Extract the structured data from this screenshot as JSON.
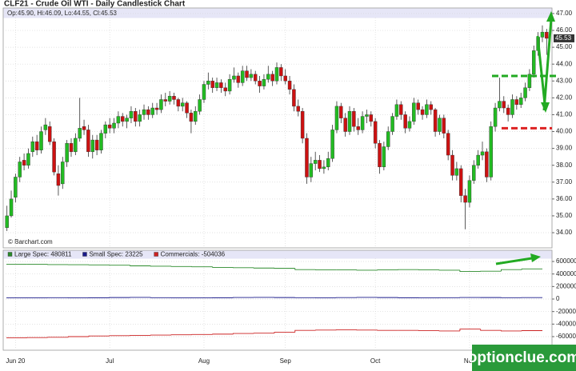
{
  "watermark": "optionclue.com",
  "chart_data": [
    {
      "type": "candlestick",
      "title": "CLF21 - Crude Oil WTI - Daily Candlestick Chart",
      "ohlc_header": "Op:45.90, Hi:46.09, Lo:44.55, Cl:45.53",
      "source": "© Barchart.com",
      "up_color": "#22bb22",
      "down_color": "#cc1111",
      "wick_color": "#333333",
      "grid": true,
      "ylim": [
        33.1,
        47.33
      ],
      "yticks": [
        {
          "value": 34,
          "label": "34.00"
        },
        {
          "value": 35,
          "label": "35.00"
        },
        {
          "value": 36,
          "label": "36.00"
        },
        {
          "value": 37,
          "label": "37.00"
        },
        {
          "value": 38,
          "label": "38.00"
        },
        {
          "value": 39,
          "label": "39.00"
        },
        {
          "value": 40,
          "label": "40.00"
        },
        {
          "value": 41,
          "label": "41.00"
        },
        {
          "value": 42,
          "label": "42.00"
        },
        {
          "value": 43,
          "label": "43.00"
        },
        {
          "value": 44,
          "label": "44.00"
        },
        {
          "value": 45,
          "label": "45.00"
        },
        {
          "value": 46,
          "label": "46.00"
        },
        {
          "value": 47,
          "label": "47.00"
        }
      ],
      "levels": [
        {
          "value": 43.3,
          "color": "#22aa22"
        },
        {
          "value": 40.2,
          "color": "#dd2222"
        }
      ],
      "categories": [
        null,
        null,
        "Jun 20",
        null,
        null,
        null,
        null,
        null,
        null,
        null,
        null,
        null,
        null,
        null,
        null,
        null,
        null,
        null,
        null,
        null,
        null,
        null,
        null,
        null,
        "Jul",
        null,
        null,
        null,
        null,
        null,
        null,
        null,
        null,
        null,
        null,
        null,
        null,
        null,
        null,
        null,
        null,
        null,
        null,
        null,
        null,
        null,
        "Aug",
        null,
        null,
        null,
        null,
        null,
        null,
        null,
        null,
        null,
        null,
        null,
        null,
        null,
        null,
        null,
        null,
        null,
        null,
        "Sep",
        null,
        null,
        null,
        null,
        null,
        null,
        null,
        null,
        null,
        null,
        null,
        null,
        null,
        null,
        null,
        null,
        null,
        null,
        null,
        null,
        "Oct",
        null,
        null,
        null,
        null,
        null,
        null,
        null,
        null,
        null,
        null,
        null,
        null,
        null,
        null,
        null,
        null,
        null,
        null,
        null,
        null,
        null,
        "Nov",
        null,
        null,
        null,
        null,
        null,
        null,
        null,
        null,
        null,
        null,
        null,
        null,
        null,
        null,
        null,
        null,
        null,
        null
      ],
      "ohlc": [
        [
          34.3,
          35.6,
          34.1,
          35.0
        ],
        [
          35.0,
          36.5,
          34.9,
          36.0
        ],
        [
          36.1,
          37.5,
          35.8,
          37.3
        ],
        [
          37.3,
          38.5,
          37.0,
          38.2
        ],
        [
          38.3,
          38.7,
          37.7,
          38.0
        ],
        [
          38.0,
          39.0,
          37.8,
          38.7
        ],
        [
          38.8,
          39.7,
          38.5,
          39.4
        ],
        [
          39.4,
          39.8,
          38.6,
          38.9
        ],
        [
          38.9,
          40.3,
          38.7,
          40.0
        ],
        [
          40.1,
          40.8,
          39.8,
          40.4
        ],
        [
          40.3,
          40.6,
          39.2,
          39.4
        ],
        [
          39.4,
          39.6,
          37.4,
          37.6
        ],
        [
          37.5,
          38.0,
          36.2,
          36.8
        ],
        [
          36.9,
          38.5,
          36.6,
          38.2
        ],
        [
          38.2,
          39.5,
          37.9,
          39.3
        ],
        [
          39.3,
          39.6,
          38.5,
          38.8
        ],
        [
          38.8,
          39.9,
          38.6,
          39.6
        ],
        [
          39.6,
          42.0,
          39.4,
          40.2
        ],
        [
          40.3,
          40.7,
          39.8,
          40.1
        ],
        [
          40.1,
          40.4,
          38.5,
          38.8
        ],
        [
          38.8,
          39.8,
          38.4,
          39.5
        ],
        [
          39.5,
          39.8,
          38.6,
          38.9
        ],
        [
          38.9,
          40.1,
          38.7,
          39.9
        ],
        [
          39.9,
          40.6,
          39.6,
          40.4
        ],
        [
          40.4,
          40.8,
          39.9,
          40.2
        ],
        [
          40.2,
          40.8,
          39.9,
          40.5
        ],
        [
          40.5,
          41.2,
          40.2,
          40.9
        ],
        [
          40.9,
          41.1,
          40.3,
          40.6
        ],
        [
          40.6,
          41.0,
          40.2,
          40.8
        ],
        [
          40.8,
          41.5,
          40.5,
          41.2
        ],
        [
          41.2,
          41.4,
          40.3,
          40.6
        ],
        [
          40.6,
          41.3,
          40.3,
          41.0
        ],
        [
          41.0,
          41.6,
          40.7,
          41.3
        ],
        [
          41.3,
          41.5,
          40.7,
          41.0
        ],
        [
          41.0,
          41.7,
          40.8,
          41.4
        ],
        [
          41.4,
          41.7,
          41.0,
          41.3
        ],
        [
          41.3,
          42.2,
          41.1,
          41.9
        ],
        [
          41.9,
          42.3,
          41.5,
          41.8
        ],
        [
          41.8,
          42.4,
          41.6,
          42.1
        ],
        [
          42.1,
          42.3,
          41.6,
          41.9
        ],
        [
          41.9,
          42.0,
          41.2,
          41.5
        ],
        [
          41.5,
          42.0,
          41.2,
          41.7
        ],
        [
          41.7,
          41.8,
          40.8,
          41.1
        ],
        [
          41.1,
          41.3,
          39.9,
          40.6
        ],
        [
          40.6,
          41.5,
          40.4,
          41.2
        ],
        [
          41.2,
          42.2,
          41.0,
          41.9
        ],
        [
          41.9,
          43.0,
          41.7,
          42.8
        ],
        [
          42.8,
          43.5,
          42.5,
          43.0
        ],
        [
          43.0,
          43.2,
          42.3,
          42.6
        ],
        [
          42.6,
          43.2,
          42.4,
          42.9
        ],
        [
          42.9,
          43.1,
          42.3,
          42.6
        ],
        [
          42.6,
          42.9,
          42.1,
          42.4
        ],
        [
          42.4,
          43.4,
          42.2,
          43.1
        ],
        [
          43.1,
          43.8,
          42.9,
          43.3
        ],
        [
          43.3,
          43.5,
          42.6,
          42.9
        ],
        [
          42.9,
          43.9,
          42.7,
          43.6
        ],
        [
          43.6,
          43.9,
          43.0,
          43.2
        ],
        [
          43.2,
          43.7,
          43.0,
          43.4
        ],
        [
          43.4,
          43.6,
          42.8,
          43.0
        ],
        [
          43.0,
          43.3,
          42.3,
          42.7
        ],
        [
          42.7,
          43.4,
          42.5,
          43.1
        ],
        [
          43.1,
          43.9,
          42.9,
          43.4
        ],
        [
          43.4,
          43.6,
          42.7,
          43.0
        ],
        [
          43.0,
          44.1,
          42.8,
          43.8
        ],
        [
          43.8,
          44.0,
          43.0,
          43.3
        ],
        [
          43.3,
          43.7,
          42.8,
          43.0
        ],
        [
          43.0,
          43.3,
          42.2,
          42.5
        ],
        [
          42.5,
          42.8,
          41.2,
          41.5
        ],
        [
          41.5,
          41.9,
          40.9,
          41.2
        ],
        [
          41.2,
          41.4,
          39.3,
          39.6
        ],
        [
          39.6,
          39.9,
          36.9,
          37.3
        ],
        [
          37.3,
          38.5,
          37.0,
          38.1
        ],
        [
          38.1,
          38.8,
          37.7,
          38.3
        ],
        [
          38.3,
          38.6,
          37.6,
          37.8
        ],
        [
          37.8,
          38.3,
          37.5,
          37.9
        ],
        [
          37.9,
          38.8,
          37.7,
          38.4
        ],
        [
          38.4,
          40.4,
          38.2,
          40.1
        ],
        [
          40.1,
          41.8,
          39.9,
          41.5
        ],
        [
          41.5,
          41.7,
          40.5,
          40.8
        ],
        [
          40.8,
          41.1,
          39.7,
          40.0
        ],
        [
          40.0,
          41.5,
          39.8,
          41.2
        ],
        [
          41.2,
          41.4,
          40.0,
          40.3
        ],
        [
          40.3,
          40.8,
          39.8,
          40.1
        ],
        [
          40.1,
          41.2,
          39.9,
          40.9
        ],
        [
          40.9,
          41.3,
          40.5,
          41.0
        ],
        [
          41.0,
          41.2,
          40.3,
          40.6
        ],
        [
          40.6,
          40.8,
          39.0,
          39.3
        ],
        [
          39.3,
          39.5,
          37.5,
          37.9
        ],
        [
          37.9,
          39.4,
          37.7,
          39.1
        ],
        [
          39.1,
          40.3,
          38.9,
          40.0
        ],
        [
          40.0,
          41.1,
          39.8,
          40.9
        ],
        [
          40.9,
          41.9,
          40.7,
          41.6
        ],
        [
          41.6,
          41.8,
          40.7,
          41.0
        ],
        [
          41.0,
          41.2,
          39.9,
          40.2
        ],
        [
          40.2,
          40.9,
          40.0,
          40.6
        ],
        [
          40.6,
          42.0,
          40.4,
          41.7
        ],
        [
          41.7,
          41.9,
          41.0,
          41.3
        ],
        [
          41.3,
          41.5,
          40.7,
          41.0
        ],
        [
          41.0,
          41.9,
          40.8,
          41.6
        ],
        [
          41.6,
          41.8,
          41.0,
          41.3
        ],
        [
          41.3,
          41.4,
          39.7,
          40.0
        ],
        [
          40.0,
          41.0,
          39.8,
          40.8
        ],
        [
          40.8,
          41.0,
          39.6,
          39.9
        ],
        [
          39.9,
          40.1,
          38.3,
          38.6
        ],
        [
          38.6,
          38.9,
          37.1,
          37.4
        ],
        [
          37.4,
          38.2,
          37.1,
          37.8
        ],
        [
          37.8,
          38.0,
          35.8,
          36.2
        ],
        [
          36.2,
          36.6,
          34.2,
          35.8
        ],
        [
          35.8,
          37.4,
          35.5,
          37.1
        ],
        [
          37.1,
          38.3,
          36.9,
          38.0
        ],
        [
          38.0,
          38.9,
          37.8,
          38.6
        ],
        [
          38.6,
          39.4,
          38.3,
          38.8
        ],
        [
          38.8,
          39.0,
          37.0,
          37.3
        ],
        [
          37.3,
          40.6,
          37.1,
          40.3
        ],
        [
          40.3,
          41.7,
          40.0,
          41.4
        ],
        [
          41.4,
          43.2,
          41.2,
          41.8
        ],
        [
          41.8,
          42.1,
          41.1,
          41.4
        ],
        [
          41.4,
          41.6,
          40.6,
          41.0
        ],
        [
          41.0,
          42.2,
          40.8,
          41.9
        ],
        [
          41.9,
          42.1,
          41.3,
          41.6
        ],
        [
          41.6,
          42.3,
          41.4,
          42.0
        ],
        [
          42.0,
          42.9,
          41.8,
          42.6
        ],
        [
          42.6,
          43.7,
          42.4,
          43.4
        ],
        [
          43.4,
          45.1,
          43.2,
          44.8
        ],
        [
          44.8,
          45.9,
          44.5,
          45.6
        ],
        [
          45.6,
          46.3,
          45.3,
          45.9
        ],
        [
          45.9,
          46.09,
          44.55,
          45.53
        ]
      ]
    },
    {
      "type": "step",
      "grid": true,
      "ylim": [
        -817000,
        779000
      ],
      "yticks": [
        600000,
        400000,
        200000,
        0,
        -200000,
        -400000,
        -600000
      ],
      "series": [
        {
          "name": "Large Spec: 480811",
          "color": "#2a8a2a",
          "values": [
            555000,
            555000,
            550000,
            548000,
            545000,
            540000,
            530000,
            525000,
            520000,
            515000,
            505000,
            500000,
            495000,
            490000,
            470000,
            465000,
            465000,
            460000,
            465000,
            470000,
            465000,
            460000,
            440000,
            445000,
            470000,
            480811
          ]
        },
        {
          "name": "Small Spec: 23225",
          "color": "#1a1a8a",
          "values": [
            18000,
            20000,
            22000,
            19000,
            21000,
            24000,
            26000,
            22000,
            20000,
            18000,
            21000,
            25000,
            27000,
            24000,
            22000,
            20000,
            23000,
            26000,
            24000,
            21000,
            19000,
            22000,
            25000,
            24000,
            22000,
            23225
          ]
        },
        {
          "name": "Commercials: -504036",
          "color": "#cc2222",
          "values": [
            -620000,
            -615000,
            -610000,
            -600000,
            -590000,
            -585000,
            -580000,
            -575000,
            -570000,
            -565000,
            -560000,
            -550000,
            -545000,
            -530000,
            -500000,
            -495000,
            -490000,
            -495000,
            -500000,
            -500000,
            -505000,
            -510000,
            -480000,
            -500000,
            -510000,
            -504036
          ]
        }
      ]
    }
  ]
}
